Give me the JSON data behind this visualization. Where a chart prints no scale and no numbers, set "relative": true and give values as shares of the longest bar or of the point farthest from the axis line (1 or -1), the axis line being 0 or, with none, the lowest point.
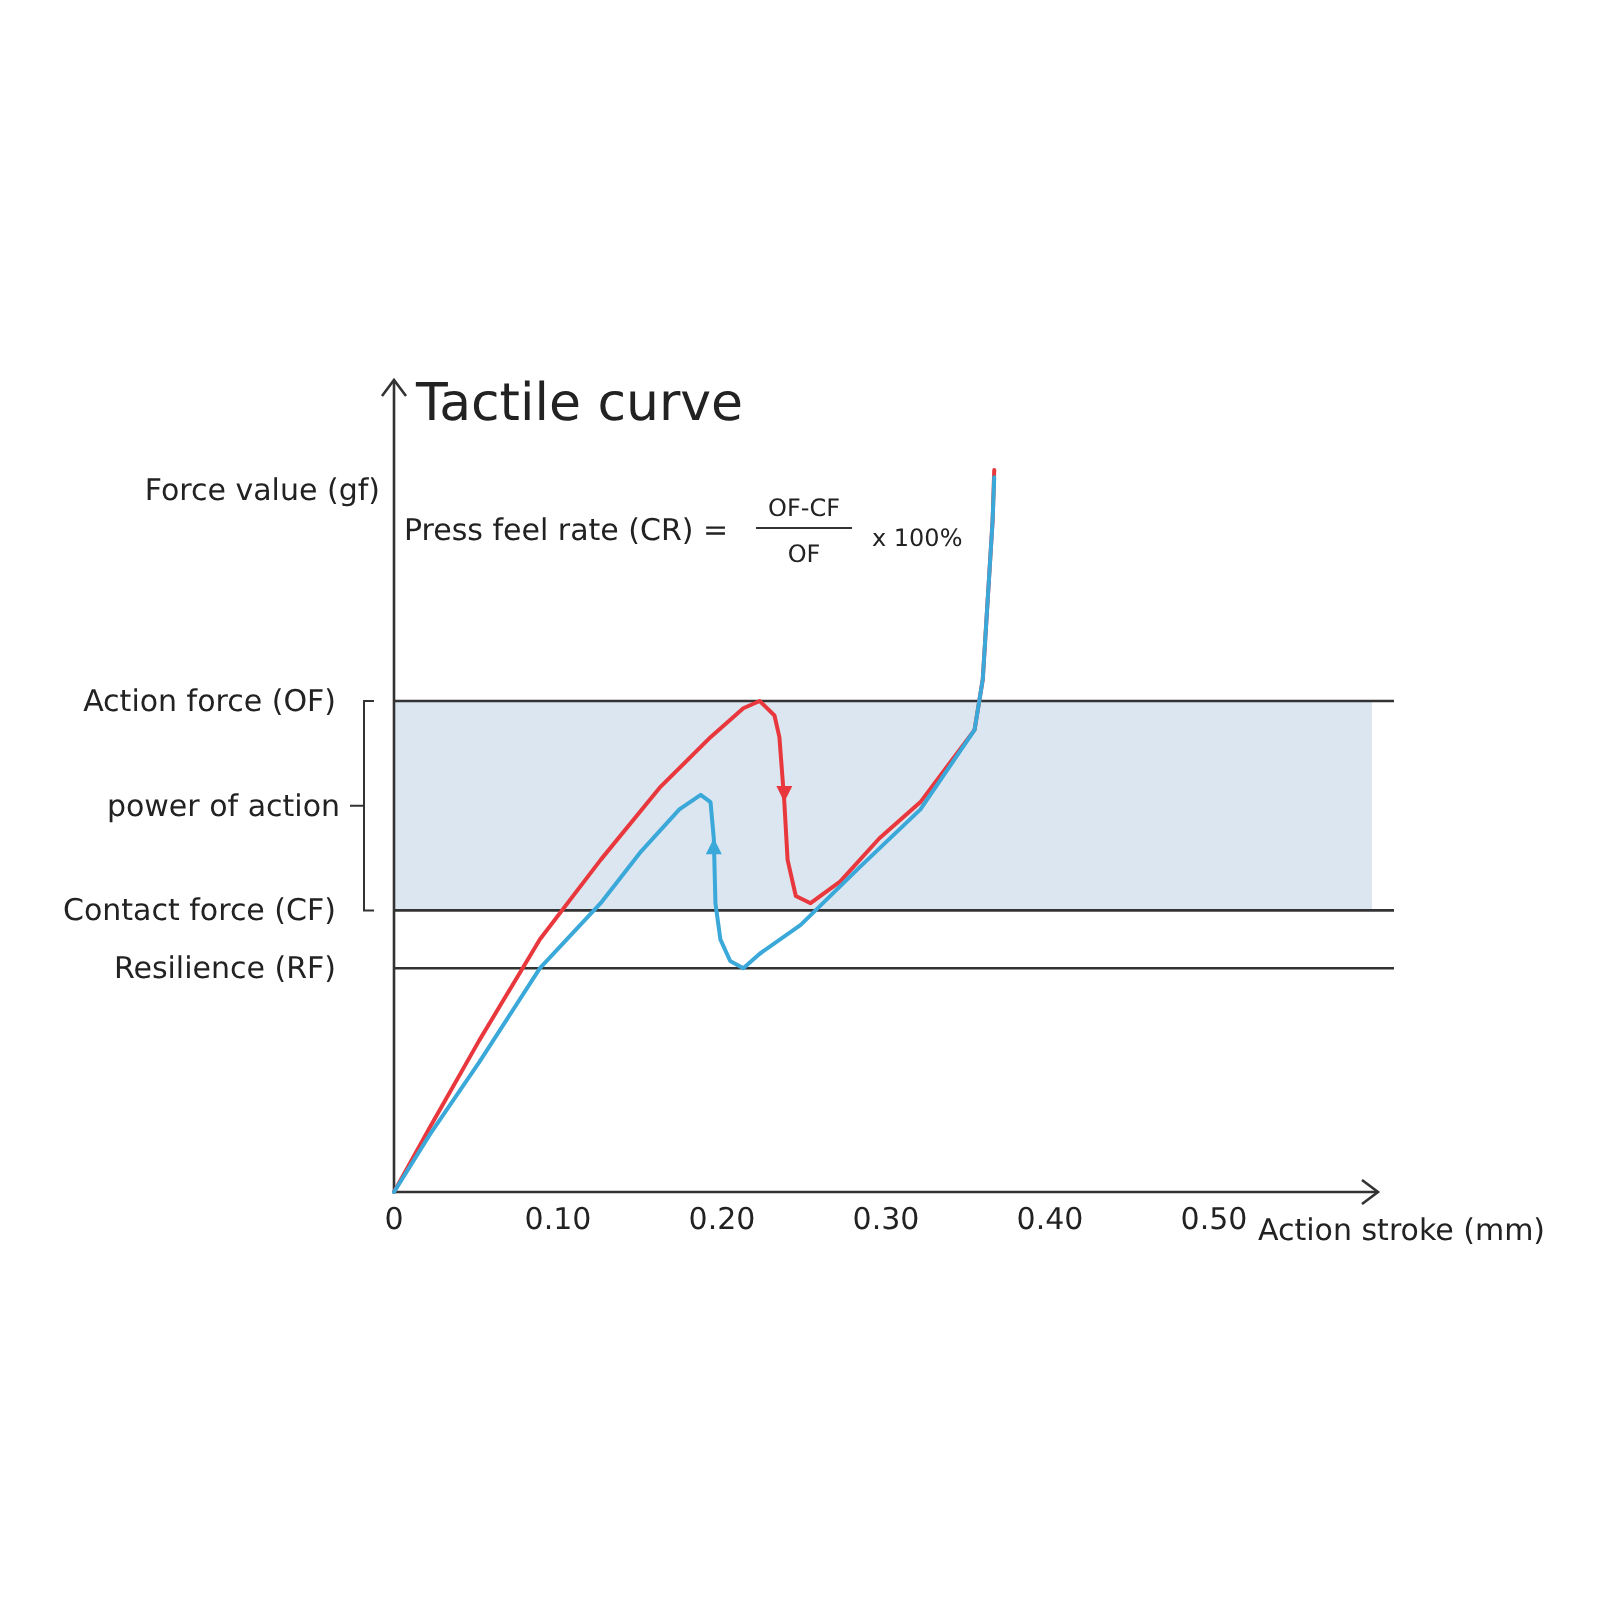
{
  "chart_data": {
    "type": "line",
    "title": "Tactile curve",
    "ylabel": "Force value (gf)",
    "xlabel": "Action stroke (mm)",
    "relative": true,
    "xlim": [
      0,
      0.6
    ],
    "xticks": [
      0,
      {
        "value": 0.1,
        "label": "0.10"
      },
      {
        "value": 0.2,
        "label": "0.20"
      },
      {
        "value": 0.3,
        "label": "0.30"
      },
      {
        "value": 0.4,
        "label": "0.40"
      },
      {
        "value": 0.5,
        "label": "0.50"
      }
    ],
    "marker": "none",
    "line_style": "solid",
    "series": [
      {
        "color": "#e8383d",
        "x": [
          0,
          0.022,
          0.052,
          0.089,
          0.126,
          0.162,
          0.193,
          0.213,
          0.223,
          0.232,
          0.235,
          0.238,
          0.24,
          0.245,
          0.254,
          0.272,
          0.296,
          0.321,
          0.354,
          0.359,
          0.362,
          0.365,
          0.366
        ],
        "values": [
          0,
          0.09,
          0.21,
          0.35,
          0.46,
          0.56,
          0.63,
          0.67,
          0.68,
          0.66,
          0.63,
          0.54,
          0.46,
          0.41,
          0.4,
          0.43,
          0.49,
          0.54,
          0.64,
          0.71,
          0.82,
          0.93,
          1
        ]
      },
      {
        "color": "#3aa8d8",
        "x": [
          0,
          0.022,
          0.052,
          0.089,
          0.126,
          0.15,
          0.174,
          0.187,
          0.193,
          0.195,
          0.196,
          0.199,
          0.205,
          0.213,
          0.223,
          0.248,
          0.284,
          0.321,
          0.354,
          0.359,
          0.362,
          0.365,
          0.366
        ],
        "values": [
          0,
          0.08,
          0.18,
          0.31,
          0.4,
          0.47,
          0.53,
          0.55,
          0.54,
          0.49,
          0.4,
          0.35,
          0.32,
          0.31,
          0.33,
          0.37,
          0.45,
          0.53,
          0.64,
          0.71,
          0.82,
          0.93,
          0.99
        ]
      }
    ],
    "ref_lines": [
      {
        "axis": "y",
        "value": 0.68,
        "label": "Action force (OF)",
        "color": "#333333"
      },
      {
        "axis": "y",
        "value": 0.39,
        "label": "Contact force (CF)",
        "color": "#333333"
      },
      {
        "axis": "y",
        "value": 0.31,
        "label": "Resilience (RF)",
        "color": "#333333"
      }
    ],
    "bands": [
      {
        "axis": "y",
        "from": 0.39,
        "to": 0.68,
        "label": "power of action",
        "color": "#dce6f0"
      }
    ],
    "annotations": [
      "Press feel rate (CR) =",
      "OF-CF",
      "OF",
      "x 100%"
    ]
  }
}
